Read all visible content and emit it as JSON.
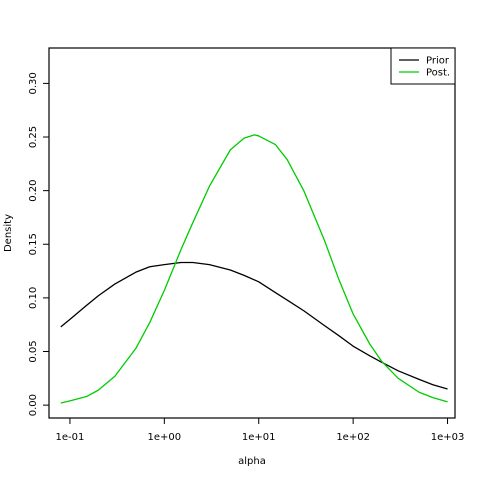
{
  "chart_data": {
    "type": "line",
    "xlabel": "alpha",
    "ylabel": "Density",
    "x_scale": "log10",
    "xlim": [
      0.06,
      1200
    ],
    "ylim": [
      -0.012,
      0.333
    ],
    "x_ticks": [
      {
        "value": 0.1,
        "label": "1e-01"
      },
      {
        "value": 1,
        "label": "1e+00"
      },
      {
        "value": 10,
        "label": "1e+01"
      },
      {
        "value": 100,
        "label": "1e+02"
      },
      {
        "value": 1000,
        "label": "1e+03"
      }
    ],
    "y_ticks": [
      {
        "value": 0.0,
        "label": "0.00"
      },
      {
        "value": 0.05,
        "label": "0.05"
      },
      {
        "value": 0.1,
        "label": "0.10"
      },
      {
        "value": 0.15,
        "label": "0.15"
      },
      {
        "value": 0.2,
        "label": "0.20"
      },
      {
        "value": 0.25,
        "label": "0.25"
      },
      {
        "value": 0.3,
        "label": "0.30"
      }
    ],
    "legend": {
      "position": "top-right"
    },
    "series": [
      {
        "name": "Prior",
        "color": "#000000",
        "points": [
          [
            0.08,
            0.073
          ],
          [
            0.1,
            0.08
          ],
          [
            0.15,
            0.093
          ],
          [
            0.2,
            0.102
          ],
          [
            0.3,
            0.113
          ],
          [
            0.5,
            0.124
          ],
          [
            0.7,
            0.129
          ],
          [
            1,
            0.131
          ],
          [
            1.5,
            0.133
          ],
          [
            2,
            0.133
          ],
          [
            3,
            0.131
          ],
          [
            5,
            0.126
          ],
          [
            7,
            0.121
          ],
          [
            10,
            0.115
          ],
          [
            15,
            0.105
          ],
          [
            20,
            0.098
          ],
          [
            30,
            0.088
          ],
          [
            50,
            0.074
          ],
          [
            70,
            0.065
          ],
          [
            100,
            0.055
          ],
          [
            150,
            0.046
          ],
          [
            200,
            0.04
          ],
          [
            300,
            0.032
          ],
          [
            500,
            0.024
          ],
          [
            700,
            0.019
          ],
          [
            1000,
            0.015
          ]
        ]
      },
      {
        "name": "Post.",
        "color": "#00cc00",
        "points": [
          [
            0.08,
            0.002
          ],
          [
            0.1,
            0.004
          ],
          [
            0.15,
            0.008
          ],
          [
            0.2,
            0.014
          ],
          [
            0.3,
            0.027
          ],
          [
            0.5,
            0.053
          ],
          [
            0.7,
            0.077
          ],
          [
            1,
            0.107
          ],
          [
            1.5,
            0.145
          ],
          [
            2,
            0.17
          ],
          [
            3,
            0.204
          ],
          [
            5,
            0.238
          ],
          [
            7,
            0.249
          ],
          [
            9,
            0.252
          ],
          [
            10,
            0.251
          ],
          [
            15,
            0.243
          ],
          [
            20,
            0.229
          ],
          [
            30,
            0.2
          ],
          [
            50,
            0.153
          ],
          [
            70,
            0.118
          ],
          [
            100,
            0.085
          ],
          [
            150,
            0.057
          ],
          [
            200,
            0.041
          ],
          [
            300,
            0.025
          ],
          [
            500,
            0.012
          ],
          [
            700,
            0.007
          ],
          [
            1000,
            0.003
          ]
        ]
      }
    ]
  }
}
